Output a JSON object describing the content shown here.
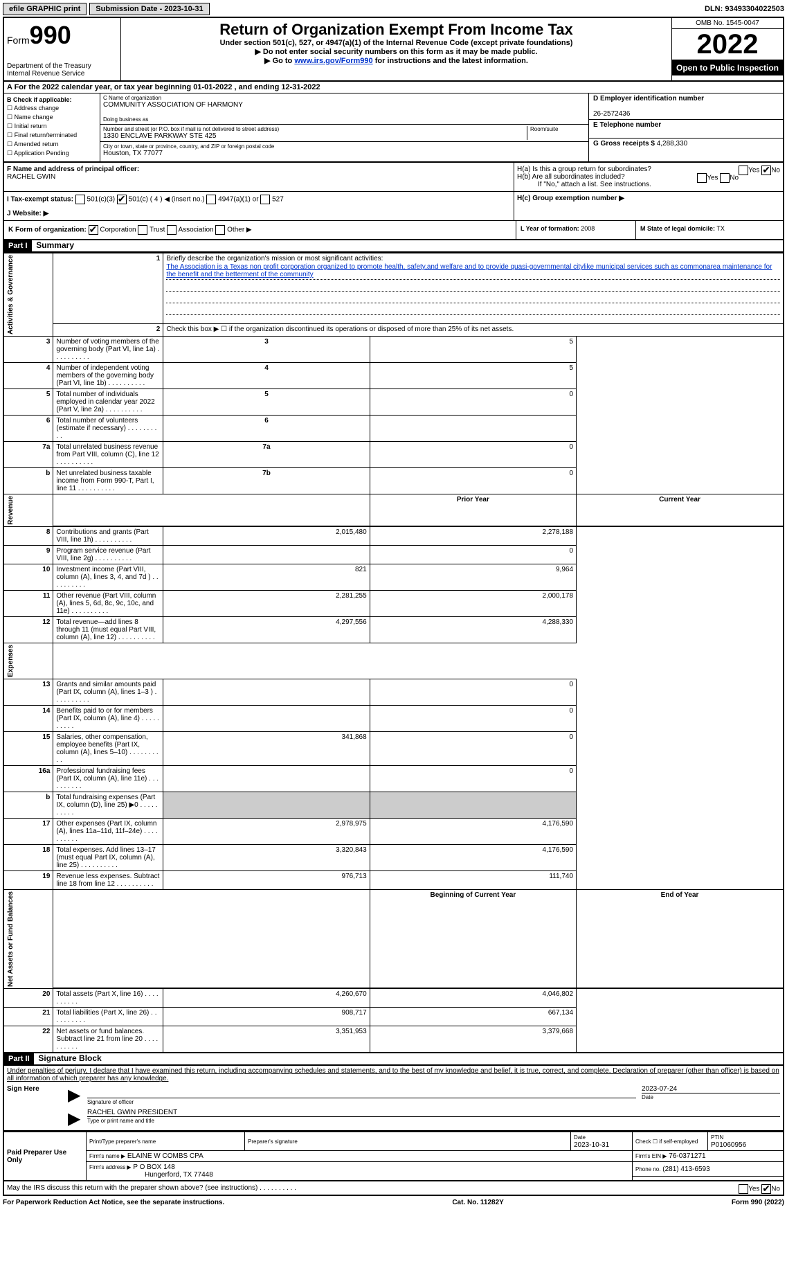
{
  "header": {
    "efile": "efile GRAPHIC print",
    "submission": "Submission Date - 2023-10-31",
    "dln": "DLN: 93493304022503"
  },
  "topbox": {
    "form": "Form",
    "num": "990",
    "dept": "Department of the Treasury",
    "irs": "Internal Revenue Service",
    "title": "Return of Organization Exempt From Income Tax",
    "subtitle": "Under section 501(c), 527, or 4947(a)(1) of the Internal Revenue Code (except private foundations)",
    "warn": "▶ Do not enter social security numbers on this form as it may be made public.",
    "goto": "▶ Go to ",
    "url": "www.irs.gov/Form990",
    "goto2": " for instructions and the latest information.",
    "omb": "OMB No. 1545-0047",
    "year": "2022",
    "inspect": "Open to Public Inspection"
  },
  "rowA": "A    For the 2022 calendar year, or tax year beginning 01-01-2022     , and ending 12-31-2022",
  "boxB": {
    "hdr": "B Check if applicable:",
    "items": [
      "Address change",
      "Name change",
      "Initial return",
      "Final return/terminated",
      "Amended return",
      "Application Pending"
    ]
  },
  "boxC": {
    "nameLbl": "C Name of organization",
    "name": "COMMUNITY ASSOCIATION OF HARMONY",
    "dbaLbl": "Doing business as",
    "addrLbl": "Number and street (or P.O. box if mail is not delivered to street address)",
    "room": "Room/suite",
    "addr": "1330 ENCLAVE PARKWAY STE 425",
    "cityLbl": "City or town, state or province, country, and ZIP or foreign postal code",
    "city": "Houston, TX  77077"
  },
  "boxD": {
    "lbl": "D Employer identification number",
    "val": "26-2572436",
    "telLbl": "E Telephone number",
    "grossLbl": "G Gross receipts $",
    "gross": "4,288,330"
  },
  "boxF": {
    "lbl": "F  Name and address of principal officer:",
    "name": "RACHEL GWIN"
  },
  "boxH": {
    "a": "H(a)  Is this a group return for subordinates?",
    "b": "H(b)  Are all subordinates included?",
    "note": "If \"No,\" attach a list. See instructions.",
    "c": "H(c)  Group exemption number ▶",
    "yes": "Yes",
    "no": "No"
  },
  "boxI": {
    "lbl": "I    Tax-exempt status:",
    "o1": "501(c)(3)",
    "o2": "501(c) ( 4 ) ◀ (insert no.)",
    "o3": "4947(a)(1) or",
    "o4": "527"
  },
  "boxJ": "J    Website: ▶",
  "boxK": {
    "lbl": "K Form of organization:",
    "o1": "Corporation",
    "o2": "Trust",
    "o3": "Association",
    "o4": "Other ▶"
  },
  "boxL": {
    "lbl": "L Year of formation:",
    "val": "2008"
  },
  "boxM": {
    "lbl": "M State of legal domicile:",
    "val": "TX"
  },
  "part1": {
    "hdr": "Part I",
    "title": "Summary",
    "l1": "Briefly describe the organization's mission or most significant activities:",
    "mission": "The Association is a Texas non profit corporation organized to promote health, safety,and welfare and to provide quasi-governmental citylike municipal services such as commonarea maintenance for the benefit and the betterment of the community",
    "l2": "Check this box ▶ ☐  if the organization discontinued its operations or disposed of more than 25% of its net assets.",
    "side_ag": "Activities & Governance",
    "side_rev": "Revenue",
    "side_exp": "Expenses",
    "side_net": "Net Assets or Fund Balances",
    "col_prior": "Prior Year",
    "col_curr": "Current Year",
    "col_beg": "Beginning of Current Year",
    "col_end": "End of Year",
    "rows_gov": [
      {
        "n": "3",
        "t": "Number of voting members of the governing body (Part VI, line 1a)",
        "b": "3",
        "v": "5"
      },
      {
        "n": "4",
        "t": "Number of independent voting members of the governing body (Part VI, line 1b)",
        "b": "4",
        "v": "5"
      },
      {
        "n": "5",
        "t": "Total number of individuals employed in calendar year 2022 (Part V, line 2a)",
        "b": "5",
        "v": "0"
      },
      {
        "n": "6",
        "t": "Total number of volunteers (estimate if necessary)",
        "b": "6",
        "v": ""
      },
      {
        "n": "7a",
        "t": "Total unrelated business revenue from Part VIII, column (C), line 12",
        "b": "7a",
        "v": "0"
      },
      {
        "n": "b",
        "t": "Net unrelated business taxable income from Form 990-T, Part I, line 11",
        "b": "7b",
        "v": "0"
      }
    ],
    "rows_rev": [
      {
        "n": "8",
        "t": "Contributions and grants (Part VIII, line 1h)",
        "p": "2,015,480",
        "c": "2,278,188"
      },
      {
        "n": "9",
        "t": "Program service revenue (Part VIII, line 2g)",
        "p": "",
        "c": "0"
      },
      {
        "n": "10",
        "t": "Investment income (Part VIII, column (A), lines 3, 4, and 7d )",
        "p": "821",
        "c": "9,964"
      },
      {
        "n": "11",
        "t": "Other revenue (Part VIII, column (A), lines 5, 6d, 8c, 9c, 10c, and 11e)",
        "p": "2,281,255",
        "c": "2,000,178"
      },
      {
        "n": "12",
        "t": "Total revenue—add lines 8 through 11 (must equal Part VIII, column (A), line 12)",
        "p": "4,297,556",
        "c": "4,288,330"
      }
    ],
    "rows_exp": [
      {
        "n": "13",
        "t": "Grants and similar amounts paid (Part IX, column (A), lines 1–3 )",
        "p": "",
        "c": "0"
      },
      {
        "n": "14",
        "t": "Benefits paid to or for members (Part IX, column (A), line 4)",
        "p": "",
        "c": "0"
      },
      {
        "n": "15",
        "t": "Salaries, other compensation, employee benefits (Part IX, column (A), lines 5–10)",
        "p": "341,868",
        "c": "0"
      },
      {
        "n": "16a",
        "t": "Professional fundraising fees (Part IX, column (A), line 11e)",
        "p": "",
        "c": "0"
      },
      {
        "n": "b",
        "t": "Total fundraising expenses (Part IX, column (D), line 25) ▶0",
        "p": "shade",
        "c": "shade"
      },
      {
        "n": "17",
        "t": "Other expenses (Part IX, column (A), lines 11a–11d, 11f–24e)",
        "p": "2,978,975",
        "c": "4,176,590"
      },
      {
        "n": "18",
        "t": "Total expenses. Add lines 13–17 (must equal Part IX, column (A), line 25)",
        "p": "3,320,843",
        "c": "4,176,590"
      },
      {
        "n": "19",
        "t": "Revenue less expenses. Subtract line 18 from line 12",
        "p": "976,713",
        "c": "111,740"
      }
    ],
    "rows_net": [
      {
        "n": "20",
        "t": "Total assets (Part X, line 16)",
        "p": "4,260,670",
        "c": "4,046,802"
      },
      {
        "n": "21",
        "t": "Total liabilities (Part X, line 26)",
        "p": "908,717",
        "c": "667,134"
      },
      {
        "n": "22",
        "t": "Net assets or fund balances. Subtract line 21 from line 20",
        "p": "3,351,953",
        "c": "3,379,668"
      }
    ]
  },
  "part2": {
    "hdr": "Part II",
    "title": "Signature Block",
    "decl": "Under penalties of perjury, I declare that I have examined this return, including accompanying schedules and statements, and to the best of my knowledge and belief, it is true, correct, and complete. Declaration of preparer (other than officer) is based on all information of which preparer has any knowledge.",
    "sign": "Sign Here",
    "sigoff": "Signature of officer",
    "date": "Date",
    "sigdate": "2023-07-24",
    "signame": "RACHEL GWIN  PRESIDENT",
    "typename": "Type or print name and title",
    "paid": "Paid Preparer Use Only",
    "prepname": "Print/Type preparer's name",
    "prepsig": "Preparer's signature",
    "prepdate": "Date",
    "prepdateval": "2023-10-31",
    "chkself": "Check ☐ if self-employed",
    "ptin": "PTIN",
    "ptinval": "P01060956",
    "firmname": "Firm's name    ▶",
    "firmnameval": "ELAINE W COMBS CPA",
    "firmein": "Firm's EIN ▶",
    "firmeinval": "76-0371271",
    "firmaddr": "Firm's address ▶",
    "firmaddrval1": "P O BOX 148",
    "firmaddrval2": "Hungerford, TX  77448",
    "phone": "Phone no.",
    "phoneval": "(281) 413-6593",
    "discuss": "May the IRS discuss this return with the preparer shown above? (see instructions)"
  },
  "footer": {
    "left": "For Paperwork Reduction Act Notice, see the separate instructions.",
    "mid": "Cat. No. 11282Y",
    "right": "Form 990 (2022)"
  }
}
